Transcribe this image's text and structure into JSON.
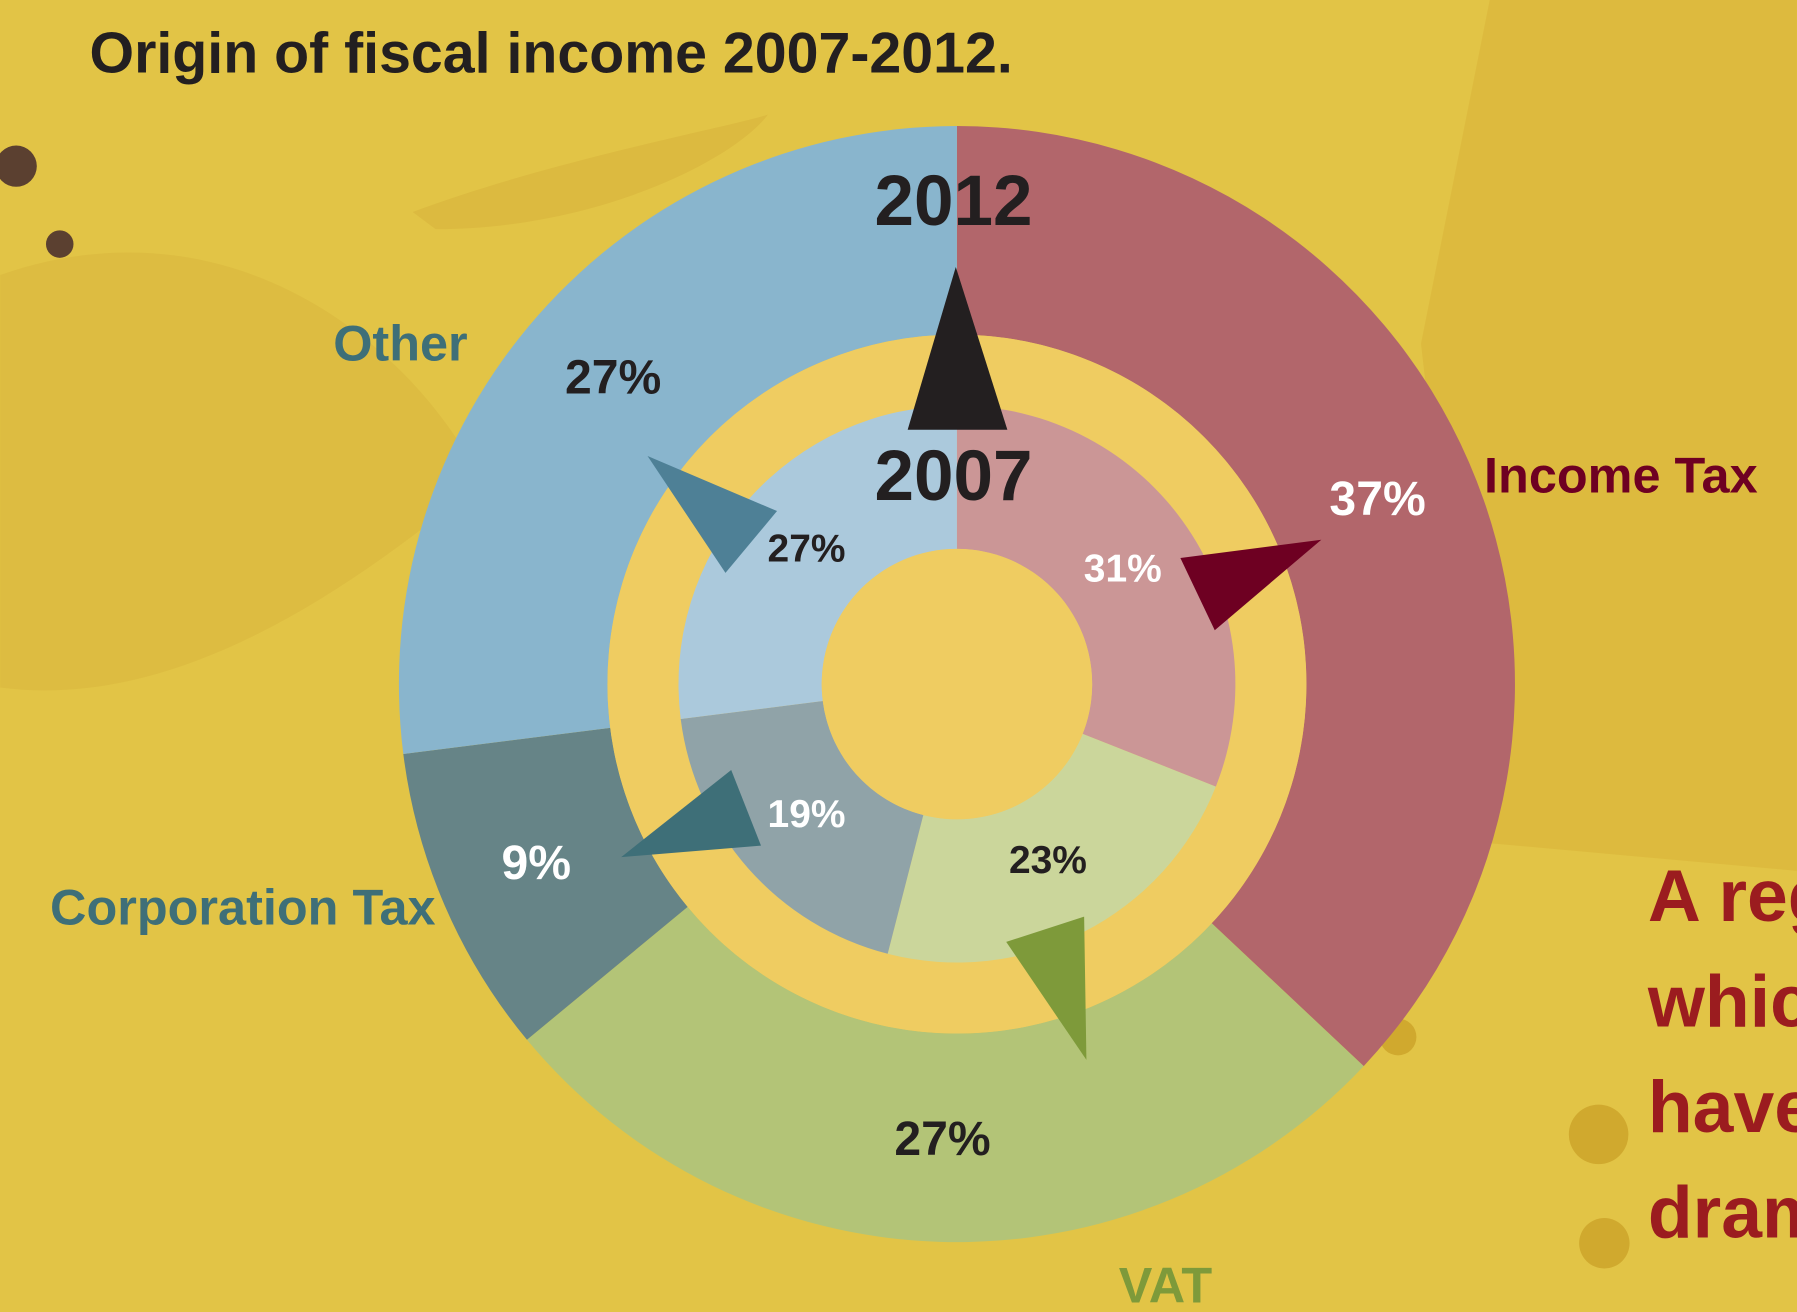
{
  "chart_data": {
    "type": "donut",
    "title": "Origin of fiscal income 2007-2012.",
    "categories": [
      "Income Tax",
      "VAT",
      "Corporation Tax",
      "Other"
    ],
    "category_colors": [
      "#6e0022",
      "#7e9a3a",
      "#3e6f78",
      "#3e6f78"
    ],
    "series": [
      {
        "name": "2012",
        "values": [
          37,
          27,
          9,
          27
        ],
        "value_labels": [
          "37%",
          "27%",
          "9%",
          "27%"
        ],
        "colors": [
          "#b2666b",
          "#b3c477",
          "#668487",
          "#89b5cd"
        ],
        "label_colors": [
          "#ffffff",
          "#231f20",
          "#ffffff",
          "#231f20"
        ]
      },
      {
        "name": "2007",
        "values": [
          31,
          23,
          19,
          27
        ],
        "value_labels": [
          "31%",
          "23%",
          "19%",
          "27%"
        ],
        "colors": [
          "#cb9696",
          "#cbd69b",
          "#90a3a8",
          "#abc9dc"
        ],
        "label_colors": [
          "#ffffff",
          "#231f20",
          "#ffffff",
          "#231f20"
        ]
      }
    ],
    "side_text": [
      "A reg",
      "whic",
      "have",
      "dram"
    ]
  }
}
